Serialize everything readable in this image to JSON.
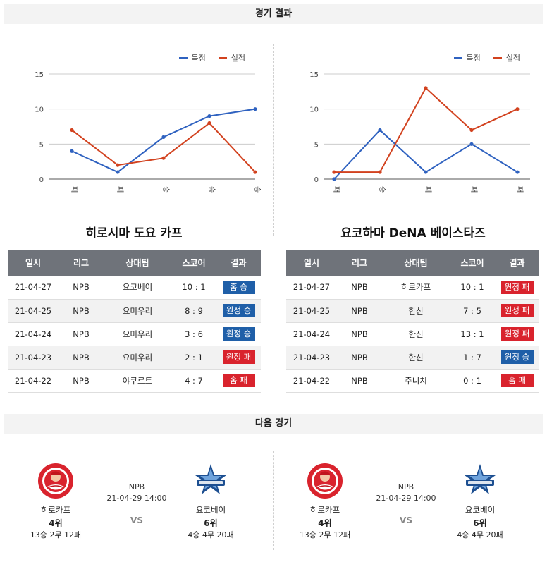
{
  "sections": {
    "results_title": "경기 결과",
    "next_title": "다음 경기"
  },
  "legend": {
    "scored": "득점",
    "allowed": "실점"
  },
  "colors": {
    "scored": "#2f62c0",
    "allowed": "#d2421f",
    "win": "#1f5fa8",
    "loss": "#d9232d"
  },
  "chart_data": [
    {
      "type": "line",
      "categories": [
        "패",
        "패",
        "승",
        "승",
        "승"
      ],
      "ylim": [
        0,
        15
      ],
      "yticks": [
        0,
        5,
        10,
        15
      ],
      "series": [
        {
          "name": "득점",
          "values": [
            4,
            1,
            6,
            9,
            10
          ]
        },
        {
          "name": "실점",
          "values": [
            7,
            2,
            3,
            8,
            1
          ]
        }
      ]
    },
    {
      "type": "line",
      "categories": [
        "패",
        "승",
        "패",
        "패",
        "패"
      ],
      "ylim": [
        0,
        15
      ],
      "yticks": [
        0,
        5,
        10,
        15
      ],
      "series": [
        {
          "name": "득점",
          "values": [
            0,
            7,
            1,
            5,
            1
          ]
        },
        {
          "name": "실점",
          "values": [
            1,
            1,
            13,
            7,
            10
          ]
        }
      ]
    }
  ],
  "teams": [
    {
      "title": "히로시마 도요 카프",
      "headers": [
        "일시",
        "리그",
        "상대팀",
        "스코어",
        "결과"
      ],
      "rows": [
        {
          "date": "21-04-27",
          "league": "NPB",
          "opponent": "요코베이",
          "score": "10 : 1",
          "result": "홈 승",
          "win": true
        },
        {
          "date": "21-04-25",
          "league": "NPB",
          "opponent": "요미우리",
          "score": "8 : 9",
          "result": "원정 승",
          "win": true
        },
        {
          "date": "21-04-24",
          "league": "NPB",
          "opponent": "요미우리",
          "score": "3 : 6",
          "result": "원정 승",
          "win": true
        },
        {
          "date": "21-04-23",
          "league": "NPB",
          "opponent": "요미우리",
          "score": "2 : 1",
          "result": "원정 패",
          "win": false
        },
        {
          "date": "21-04-22",
          "league": "NPB",
          "opponent": "야쿠르트",
          "score": "4 : 7",
          "result": "홈 패",
          "win": false
        }
      ]
    },
    {
      "title": "요코하마 DeNA 베이스타즈",
      "headers": [
        "일시",
        "리그",
        "상대팀",
        "스코어",
        "결과"
      ],
      "rows": [
        {
          "date": "21-04-27",
          "league": "NPB",
          "opponent": "히로카프",
          "score": "10 : 1",
          "result": "원정 패",
          "win": false
        },
        {
          "date": "21-04-25",
          "league": "NPB",
          "opponent": "한신",
          "score": "7 : 5",
          "result": "원정 패",
          "win": false
        },
        {
          "date": "21-04-24",
          "league": "NPB",
          "opponent": "한신",
          "score": "13 : 1",
          "result": "원정 패",
          "win": false
        },
        {
          "date": "21-04-23",
          "league": "NPB",
          "opponent": "한신",
          "score": "1 : 7",
          "result": "원정 승",
          "win": true
        },
        {
          "date": "21-04-22",
          "league": "NPB",
          "opponent": "주니치",
          "score": "0 : 1",
          "result": "홈 패",
          "win": false
        }
      ]
    }
  ],
  "next_games": [
    {
      "home": {
        "name": "히로카프",
        "rank": "4위",
        "record": "13승 2무 12패",
        "logo": "carp-logo"
      },
      "away": {
        "name": "요코베이",
        "rank": "6위",
        "record": "4승 4무 20패",
        "logo": "baystars-logo"
      },
      "league": "NPB",
      "datetime": "21-04-29 14:00",
      "vs": "VS"
    },
    {
      "home": {
        "name": "히로카프",
        "rank": "4위",
        "record": "13승 2무 12패",
        "logo": "carp-logo"
      },
      "away": {
        "name": "요코베이",
        "rank": "6위",
        "record": "4승 4무 20패",
        "logo": "baystars-logo"
      },
      "league": "NPB",
      "datetime": "21-04-29 14:00",
      "vs": "VS"
    }
  ]
}
